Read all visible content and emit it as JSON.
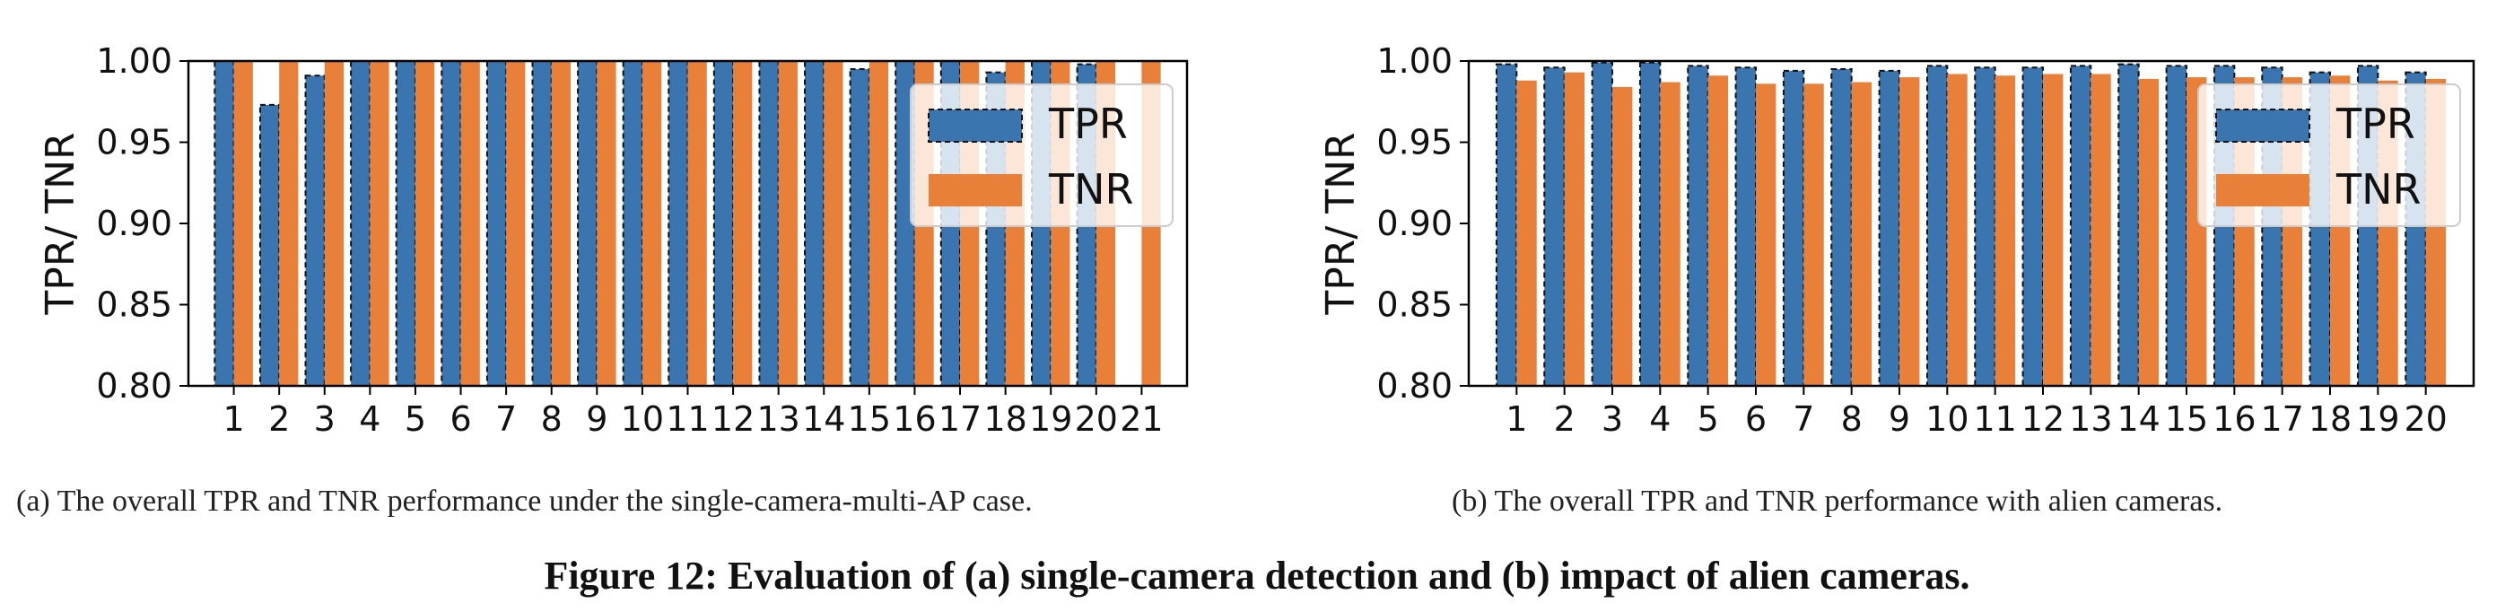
{
  "figure_caption": "Figure 12: Evaluation of (a) single-camera detection and (b) impact of alien cameras.",
  "captions": {
    "a": "(a)  The overall TPR and TNR performance under the single-camera-multi-AP case.",
    "b": "(b)  The overall TPR and TNR performance with alien cameras."
  },
  "colors": {
    "tpr": "#3a75b0",
    "tnr": "#e8803a"
  },
  "chart_data": [
    {
      "type": "bar",
      "ylabel": "TPR/ TNR",
      "xlabel": "",
      "ylim": [
        0.8,
        1.0
      ],
      "yticks": [
        "0.80",
        "0.85",
        "0.90",
        "0.95",
        "1.00"
      ],
      "legend_position": "top-right",
      "categories": [
        "1",
        "2",
        "3",
        "4",
        "5",
        "6",
        "7",
        "8",
        "9",
        "10",
        "11",
        "12",
        "13",
        "14",
        "15",
        "16",
        "17",
        "18",
        "19",
        "20",
        "21"
      ],
      "series": [
        {
          "name": "TPR",
          "values": [
            1.0,
            0.973,
            0.991,
            1.0,
            1.0,
            1.0,
            1.0,
            1.0,
            1.0,
            1.0,
            1.0,
            1.0,
            1.0,
            1.0,
            0.995,
            1.0,
            1.0,
            0.993,
            1.0,
            0.998,
            null
          ]
        },
        {
          "name": "TNR",
          "values": [
            1.0,
            1.0,
            1.0,
            1.0,
            1.0,
            1.0,
            1.0,
            1.0,
            1.0,
            1.0,
            1.0,
            1.0,
            1.0,
            1.0,
            1.0,
            1.0,
            1.0,
            1.0,
            1.0,
            1.0,
            1.0
          ]
        }
      ]
    },
    {
      "type": "bar",
      "ylabel": "TPR/ TNR",
      "xlabel": "",
      "ylim": [
        0.8,
        1.0
      ],
      "yticks": [
        "0.80",
        "0.85",
        "0.90",
        "0.95",
        "1.00"
      ],
      "legend_position": "top-right",
      "categories": [
        "1",
        "2",
        "3",
        "4",
        "5",
        "6",
        "7",
        "8",
        "9",
        "10",
        "11",
        "12",
        "13",
        "14",
        "15",
        "16",
        "17",
        "18",
        "19",
        "20"
      ],
      "series": [
        {
          "name": "TPR",
          "values": [
            0.998,
            0.996,
            0.999,
            0.999,
            0.997,
            0.996,
            0.994,
            0.995,
            0.994,
            0.997,
            0.996,
            0.996,
            0.997,
            0.998,
            0.997,
            0.997,
            0.996,
            0.993,
            0.997,
            0.993
          ]
        },
        {
          "name": "TNR",
          "values": [
            0.988,
            0.993,
            0.984,
            0.987,
            0.991,
            0.986,
            0.986,
            0.987,
            0.99,
            0.992,
            0.991,
            0.992,
            0.992,
            0.989,
            0.99,
            0.99,
            0.99,
            0.991,
            0.988,
            0.989
          ]
        }
      ]
    }
  ]
}
